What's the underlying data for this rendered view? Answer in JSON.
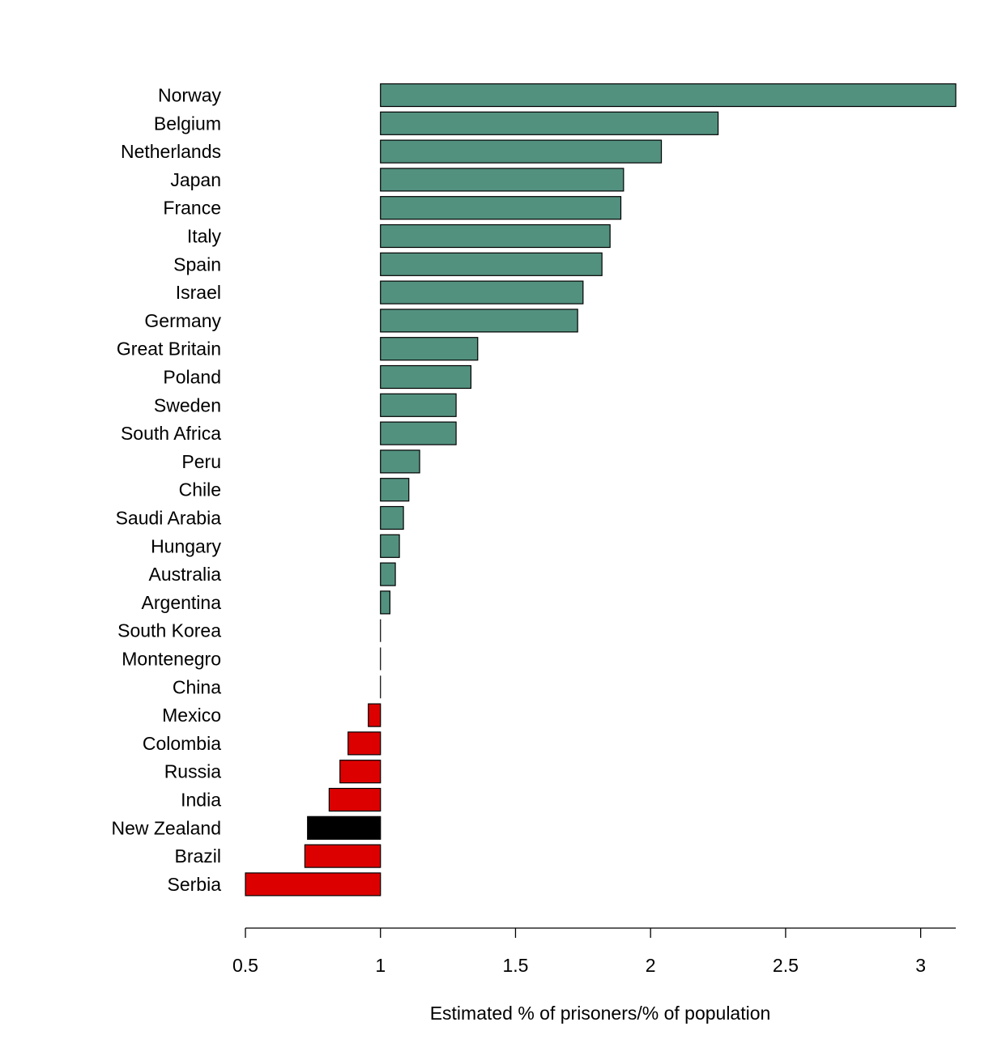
{
  "chart_data": {
    "type": "bar",
    "orientation": "horizontal",
    "baseline": 1,
    "categories": [
      "Norway",
      "Belgium",
      "Netherlands",
      "Japan",
      "France",
      "Italy",
      "Spain",
      "Israel",
      "Germany",
      "Great Britain",
      "Poland",
      "Sweden",
      "South Africa",
      "Peru",
      "Chile",
      "Saudi Arabia",
      "Hungary",
      "Australia",
      "Argentina",
      "South Korea",
      "Montenegro",
      "China",
      "Mexico",
      "Colombia",
      "Russia",
      "India",
      "New Zealand",
      "Brazil",
      "Serbia"
    ],
    "values": [
      3.13,
      2.25,
      2.04,
      1.9,
      1.89,
      1.85,
      1.82,
      1.75,
      1.73,
      1.36,
      1.335,
      1.28,
      1.28,
      1.145,
      1.105,
      1.085,
      1.07,
      1.055,
      1.035,
      1.0,
      1.0,
      1.0,
      0.955,
      0.88,
      0.85,
      0.81,
      0.73,
      0.72,
      0.5
    ],
    "xlabel": "Estimated % of prisoners/% of population",
    "ylabel": "",
    "xlim": [
      0.5,
      3.13
    ],
    "xticks": [
      0.5,
      1,
      1.5,
      2,
      2.5,
      3
    ],
    "xtick_labels": [
      "0.5",
      "1",
      "1.5",
      "2",
      "2.5",
      "3"
    ],
    "colors": {
      "above": "#53917f",
      "below": "#dd0000",
      "highlight": "#000000",
      "highlight_category": "New Zealand"
    },
    "grid": false,
    "legend": "none"
  }
}
